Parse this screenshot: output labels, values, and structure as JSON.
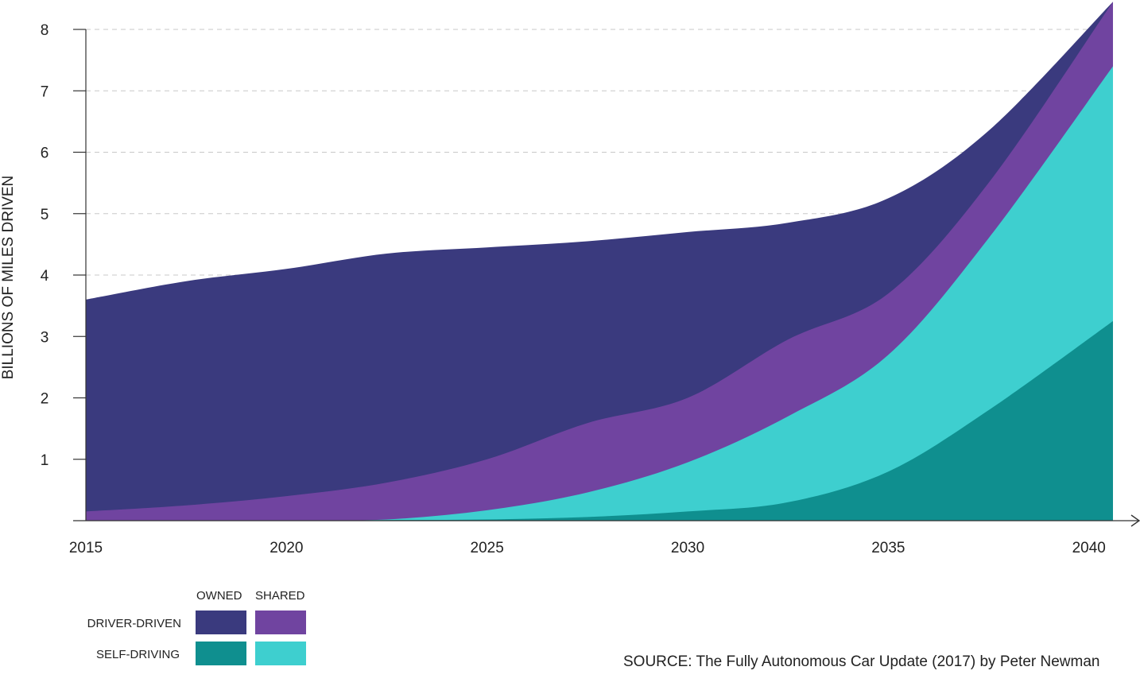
{
  "chart_data": {
    "type": "area",
    "stacked": true,
    "title": "",
    "xlabel": "",
    "ylabel": "BILLIONS OF MILES DRIVEN",
    "x": [
      2015,
      2017.5,
      2020,
      2022.5,
      2025,
      2027.5,
      2030,
      2032.5,
      2035,
      2037.5,
      2040.6
    ],
    "xlim": [
      2015,
      2041.5
    ],
    "ylim": [
      0,
      8
    ],
    "x_ticks": [
      2015,
      2020,
      2025,
      2030,
      2035,
      2040
    ],
    "y_ticks": [
      1,
      2,
      3,
      4,
      5,
      6,
      7,
      8
    ],
    "grid": "horizontal dashed",
    "series": [
      {
        "name": "SELF-DRIVING OWNED",
        "color": "#0f8f8f",
        "values": [
          0,
          0,
          0,
          0.01,
          0.02,
          0.06,
          0.15,
          0.3,
          0.8,
          1.8,
          3.25
        ]
      },
      {
        "name": "SELF-DRIVING SHARED",
        "color": "#3ecfcf",
        "values": [
          0,
          0,
          0,
          0.01,
          0.15,
          0.4,
          0.8,
          1.4,
          1.9,
          2.8,
          4.15
        ]
      },
      {
        "name": "DRIVER-DRIVEN SHARED",
        "color": "#7044a0",
        "values": [
          0.15,
          0.25,
          0.4,
          0.6,
          0.83,
          1.13,
          1.05,
          1.25,
          1.0,
          0.9,
          1.05
        ]
      },
      {
        "name": "DRIVER-DRIVEN OWNED",
        "color": "#3a3a7e",
        "values": [
          3.45,
          3.65,
          3.7,
          3.73,
          3.45,
          2.96,
          2.7,
          1.9,
          1.55,
          0.85,
          0
        ]
      }
    ]
  },
  "legend": {
    "col_owned": "OWNED",
    "col_shared": "SHARED",
    "row_driver": "DRIVER-DRIVEN",
    "row_self": "SELF-DRIVING"
  },
  "source": "SOURCE: The Fully Autonomous Car Update (2017) by Peter Newman"
}
